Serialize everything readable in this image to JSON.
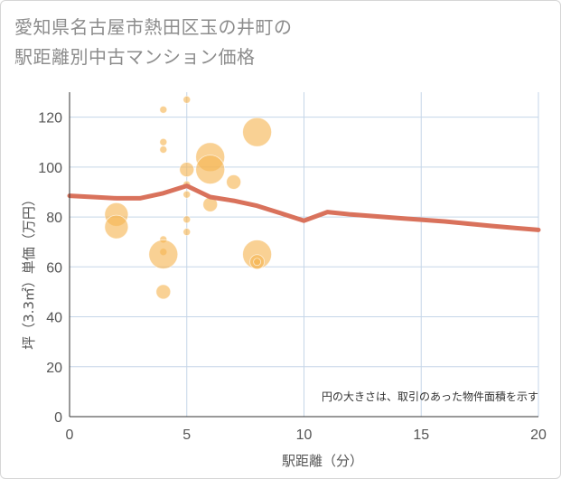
{
  "title_lines": [
    "愛知県名古屋市熱田区玉の井町の",
    "駅距離別中古マンション価格"
  ],
  "chart_data": {
    "type": "scatter",
    "title": "愛知県名古屋市熱田区玉の井町の駅距離別中古マンション価格",
    "xlabel": "駅距離（分）",
    "ylabel": "坪（3.3㎡）単価（万円）",
    "xlim": [
      0,
      20
    ],
    "ylim": [
      0,
      130
    ],
    "x_ticks": [
      0,
      5,
      10,
      15,
      20
    ],
    "y_ticks": [
      0,
      20,
      40,
      60,
      80,
      100,
      120
    ],
    "x_tick_labels": [
      "0",
      "5",
      "10",
      "15",
      "20"
    ],
    "y_tick_labels": [
      "0",
      "20",
      "40",
      "60",
      "80",
      "100",
      "120"
    ],
    "grid": true,
    "note": "円の大きさは、取引のあった物件面積を示す",
    "bubbles": [
      {
        "x": 2,
        "y": 81,
        "size": 3
      },
      {
        "x": 2,
        "y": 76,
        "size": 3
      },
      {
        "x": 4,
        "y": 123,
        "size": 1
      },
      {
        "x": 4,
        "y": 110,
        "size": 1
      },
      {
        "x": 4,
        "y": 107,
        "size": 1
      },
      {
        "x": 4,
        "y": 71,
        "size": 1
      },
      {
        "x": 4,
        "y": 66,
        "size": 1
      },
      {
        "x": 4,
        "y": 65,
        "size": 4
      },
      {
        "x": 4,
        "y": 50,
        "size": 2
      },
      {
        "x": 5,
        "y": 127,
        "size": 1
      },
      {
        "x": 5,
        "y": 99,
        "size": 2
      },
      {
        "x": 5,
        "y": 93,
        "size": 1
      },
      {
        "x": 5,
        "y": 89,
        "size": 1
      },
      {
        "x": 5,
        "y": 79,
        "size": 1
      },
      {
        "x": 5,
        "y": 74,
        "size": 1
      },
      {
        "x": 6,
        "y": 104,
        "size": 4
      },
      {
        "x": 6,
        "y": 99,
        "size": 4
      },
      {
        "x": 6,
        "y": 85,
        "size": 2
      },
      {
        "x": 7,
        "y": 94,
        "size": 2
      },
      {
        "x": 8,
        "y": 114,
        "size": 4
      },
      {
        "x": 8,
        "y": 65,
        "size": 4
      },
      {
        "x": 8,
        "y": 62,
        "size": 2
      },
      {
        "x": 8,
        "y": 62,
        "size": 1
      }
    ],
    "trend_line": {
      "x": [
        0,
        1,
        2,
        3,
        4,
        5,
        6,
        7,
        8,
        9,
        10,
        11,
        12,
        13,
        14,
        15,
        16,
        17,
        18,
        19,
        20
      ],
      "y": [
        88.5,
        88,
        87.5,
        87.5,
        89.5,
        92.5,
        88,
        86.5,
        84.5,
        81.5,
        78.5,
        82,
        81,
        80.3,
        79.6,
        78.9,
        78.2,
        77.3,
        76.4,
        75.6,
        74.8
      ]
    },
    "colors": {
      "bubble": "#f5b553",
      "line": "#d9725c",
      "grid": "#c5d6e8"
    }
  }
}
